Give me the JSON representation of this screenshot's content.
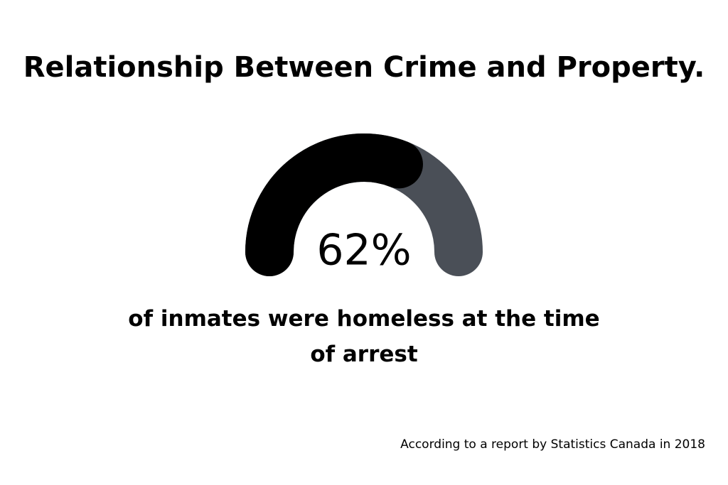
{
  "chart_data": {
    "type": "gauge",
    "title": "Relationship Between Crime and Property.",
    "values": [
      62
    ],
    "value_labels": [
      "62%"
    ],
    "ylim": [
      0,
      100
    ],
    "color": "#000000",
    "track_color": "#4a4f57",
    "caption": "of inmates were homeless at the time of arrest",
    "source": "According to a report by Statistics Canada in 2018"
  }
}
